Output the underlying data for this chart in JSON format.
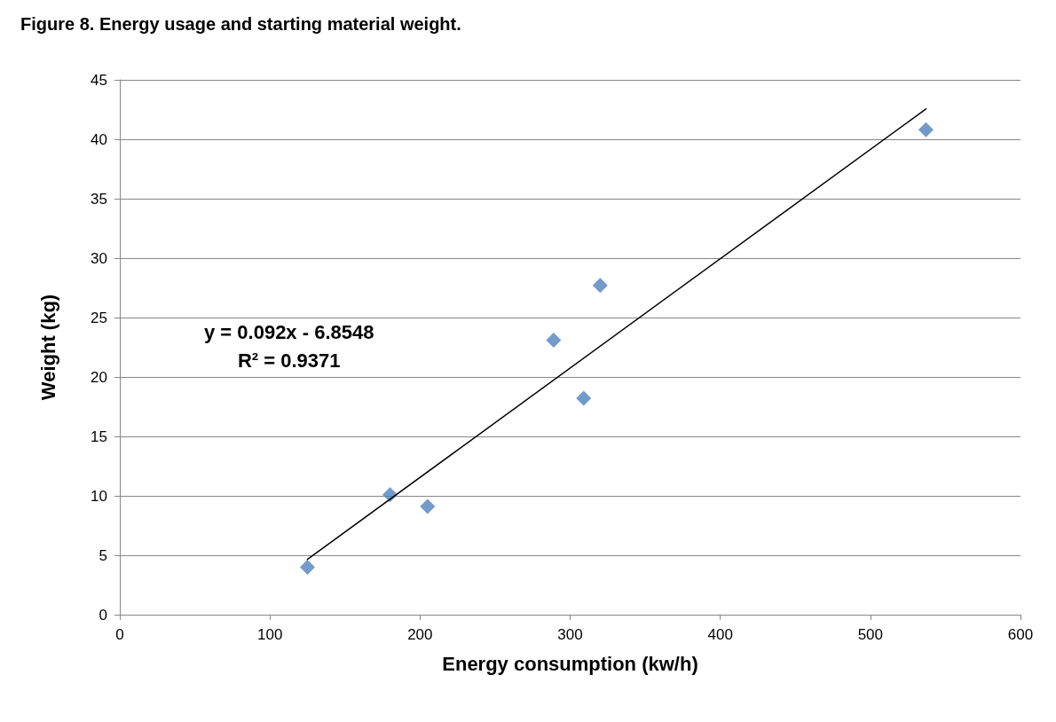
{
  "chart_data": {
    "type": "scatter",
    "title": "Figure 8. Energy usage and starting material weight.",
    "xlabel": "Energy consumption (kw/h)",
    "ylabel": "Weight (kg)",
    "xlim": [
      0,
      600
    ],
    "xticks": [
      0,
      100,
      200,
      300,
      400,
      500,
      600
    ],
    "ylim": [
      0,
      45
    ],
    "yticks": [
      0,
      5,
      10,
      15,
      20,
      25,
      30,
      35,
      40,
      45
    ],
    "grid": "y",
    "marker": "diamond",
    "series": [
      {
        "color": "#4f81bd",
        "x": [
          125,
          180,
          205,
          289,
          309,
          320,
          537
        ],
        "values": [
          4.0,
          10.1,
          9.1,
          23.1,
          18.2,
          27.7,
          40.8
        ]
      },
      {
        "type": "line",
        "color": "#000000",
        "marker": "none",
        "line_style": "solid",
        "x": [
          125,
          537
        ],
        "values": [
          4.65,
          42.55
        ]
      }
    ],
    "annotations": [
      "y = 0.092x - 6.8548\nR² = 0.9371"
    ]
  }
}
